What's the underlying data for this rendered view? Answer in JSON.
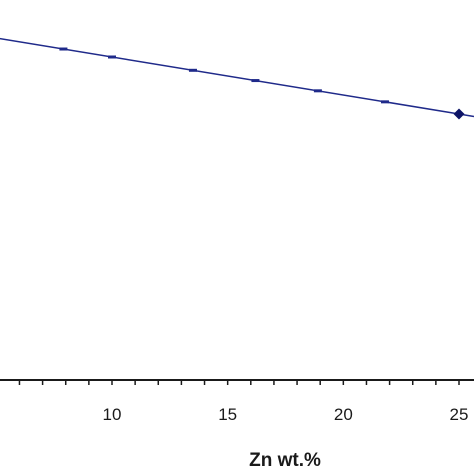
{
  "chart_data": {
    "type": "line",
    "xlabel": "Zn wt.%",
    "ylabel": "",
    "xlim": [
      5,
      25.5
    ],
    "ylim": [
      0,
      1
    ],
    "x_ticks": [
      "10",
      "15",
      "20",
      "25"
    ],
    "grid": false,
    "series": [
      {
        "x": [
          5,
          25
        ],
        "y": [
          0.9,
          0.7
        ],
        "line_color": "#1f2a8a",
        "marker_color": "#0d1466",
        "marker": "diamond"
      }
    ],
    "minor_markers_x": [
      7.9,
      10.0,
      13.5,
      16.2,
      18.9,
      21.8
    ]
  }
}
